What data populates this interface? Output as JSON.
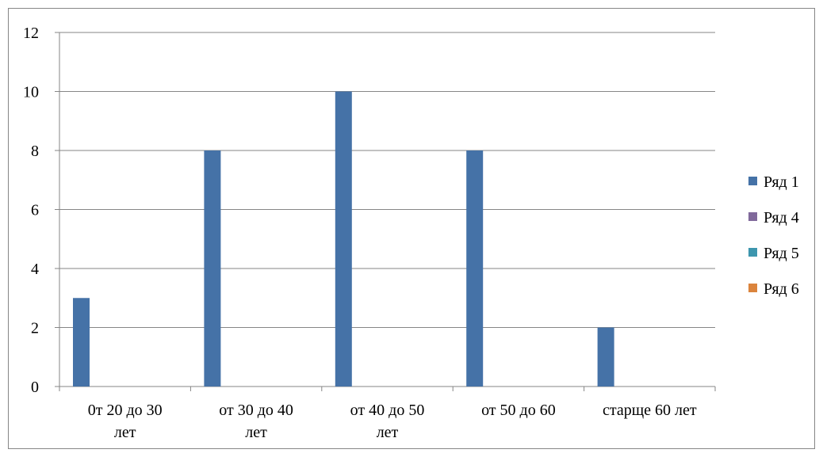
{
  "chart_data": {
    "type": "bar",
    "categories": [
      [
        "0т 20 до 30",
        "лет"
      ],
      [
        "от 30 до 40",
        "лет"
      ],
      [
        "от 40 до 50",
        "лет"
      ],
      [
        "от 50 до 60"
      ],
      [
        "старще 60 лет"
      ]
    ],
    "series": [
      {
        "name": "Ряд 1",
        "color": "#4572A7",
        "values": [
          3,
          8,
          10,
          8,
          2
        ]
      },
      {
        "name": "Ряд 4",
        "color": "#80699B",
        "values": [
          0,
          0,
          0,
          0,
          0
        ]
      },
      {
        "name": "Ряд 5",
        "color": "#3D96AE",
        "values": [
          0,
          0,
          0,
          0,
          0
        ]
      },
      {
        "name": "Ряд 6",
        "color": "#DB843D",
        "values": [
          0,
          0,
          0,
          0,
          0
        ]
      }
    ],
    "yticks": [
      0,
      2,
      4,
      6,
      8,
      10,
      12
    ],
    "ylim": [
      0,
      12
    ],
    "grid": true,
    "legend_position": "right"
  }
}
